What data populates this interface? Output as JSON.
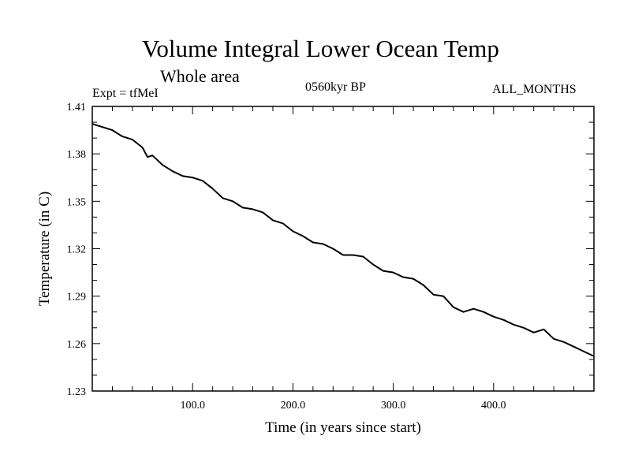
{
  "chart_data": {
    "type": "line",
    "title": "Volume Integral Lower Ocean Temp",
    "subtitle": "Whole area",
    "annotations": {
      "experiment": "Expt = tfMeI",
      "period": "0560kyr BP",
      "months": "ALL_MONTHS"
    },
    "xlabel": "Time (in years since start)",
    "ylabel": "Temperature (in C)",
    "xlim": [
      0,
      500
    ],
    "ylim": [
      1.23,
      1.41
    ],
    "x_ticks": [
      100,
      200,
      300,
      400
    ],
    "x_tick_labels": [
      "100.0",
      "200.0",
      "300.0",
      "400.0"
    ],
    "y_ticks": [
      1.23,
      1.26,
      1.29,
      1.32,
      1.35,
      1.38,
      1.41
    ],
    "y_tick_labels": [
      "1.23",
      "1.26",
      "1.29",
      "1.32",
      "1.35",
      "1.38",
      "1.41"
    ],
    "grid": false,
    "series": [
      {
        "x": [
          0,
          10,
          20,
          30,
          40,
          50,
          55,
          60,
          70,
          80,
          90,
          100,
          110,
          120,
          130,
          140,
          150,
          160,
          170,
          180,
          190,
          200,
          210,
          220,
          230,
          240,
          250,
          260,
          270,
          280,
          290,
          300,
          310,
          320,
          330,
          340,
          350,
          360,
          370,
          380,
          390,
          400,
          410,
          420,
          430,
          440,
          450,
          460,
          470,
          480,
          490,
          500
        ],
        "y": [
          1.399,
          1.397,
          1.395,
          1.391,
          1.389,
          1.384,
          1.378,
          1.379,
          1.373,
          1.369,
          1.366,
          1.365,
          1.363,
          1.358,
          1.352,
          1.35,
          1.346,
          1.345,
          1.343,
          1.338,
          1.336,
          1.331,
          1.328,
          1.324,
          1.323,
          1.32,
          1.316,
          1.316,
          1.315,
          1.31,
          1.306,
          1.305,
          1.302,
          1.301,
          1.297,
          1.291,
          1.29,
          1.283,
          1.28,
          1.282,
          1.28,
          1.277,
          1.275,
          1.272,
          1.27,
          1.267,
          1.269,
          1.263,
          1.261,
          1.258,
          1.255,
          1.252
        ]
      }
    ]
  }
}
